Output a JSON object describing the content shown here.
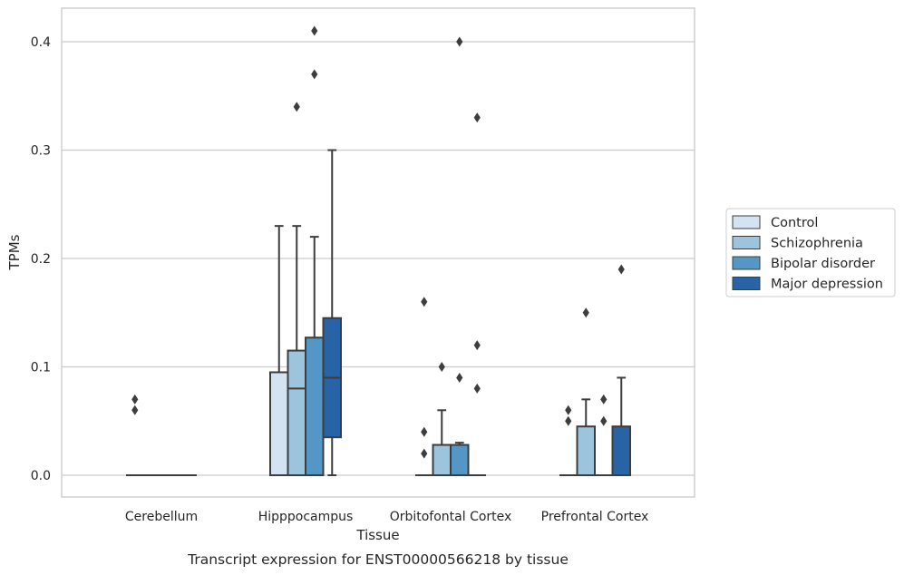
{
  "caption": "Transcript expression for ENST00000566218 by tissue",
  "chart_data": {
    "type": "box",
    "xlabel": "Tissue",
    "ylabel": "TPMs",
    "ylim": [
      -0.02,
      0.43
    ],
    "yticks": [
      0.0,
      0.1,
      0.2,
      0.3,
      0.4
    ],
    "ytick_labels": [
      "0.0",
      "0.1",
      "0.2",
      "0.3",
      "0.4"
    ],
    "grid": "horizontal",
    "legend_position": "right",
    "categories": [
      "Cerebellum",
      "Hipppocampus",
      "Orbitofontal Cortex",
      "Prefrontal Cortex"
    ],
    "series": [
      {
        "name": "Control",
        "color": "#d4e3f1",
        "boxes": [
          {
            "q1": 0,
            "median": 0,
            "q3": 0,
            "whisker_low": 0,
            "whisker_high": 0,
            "outliers": [
              0.06,
              0.07
            ]
          },
          {
            "q1": 0,
            "median": 0,
            "q3": 0.095,
            "whisker_low": 0,
            "whisker_high": 0.23,
            "outliers": []
          },
          {
            "q1": 0,
            "median": 0,
            "q3": 0,
            "whisker_low": 0,
            "whisker_high": 0,
            "outliers": [
              0.02,
              0.04,
              0.16
            ]
          },
          {
            "q1": 0,
            "median": 0,
            "q3": 0,
            "whisker_low": 0,
            "whisker_high": 0,
            "outliers": [
              0.05,
              0.06
            ]
          }
        ]
      },
      {
        "name": "Schizophrenia",
        "color": "#9dc4dd",
        "boxes": [
          {
            "q1": 0,
            "median": 0,
            "q3": 0,
            "whisker_low": 0,
            "whisker_high": 0,
            "outliers": []
          },
          {
            "q1": 0,
            "median": 0.08,
            "q3": 0.115,
            "whisker_low": 0,
            "whisker_high": 0.23,
            "outliers": [
              0.34
            ]
          },
          {
            "q1": 0,
            "median": 0,
            "q3": 0.028,
            "whisker_low": 0,
            "whisker_high": 0.06,
            "outliers": [
              0.1
            ]
          },
          {
            "q1": 0,
            "median": 0,
            "q3": 0.045,
            "whisker_low": 0,
            "whisker_high": 0.07,
            "outliers": [
              0.15
            ]
          }
        ]
      },
      {
        "name": "Bipolar disorder",
        "color": "#5496c4",
        "boxes": [
          {
            "q1": 0,
            "median": 0,
            "q3": 0,
            "whisker_low": 0,
            "whisker_high": 0,
            "outliers": []
          },
          {
            "q1": 0,
            "median": 0,
            "q3": 0.127,
            "whisker_low": 0,
            "whisker_high": 0.22,
            "outliers": [
              0.37,
              0.41
            ]
          },
          {
            "q1": 0,
            "median": 0,
            "q3": 0.028,
            "whisker_low": 0,
            "whisker_high": 0.03,
            "outliers": [
              0.09,
              0.4
            ]
          },
          {
            "q1": 0,
            "median": 0,
            "q3": 0,
            "whisker_low": 0,
            "whisker_high": 0,
            "outliers": [
              0.05,
              0.07
            ]
          }
        ]
      },
      {
        "name": "Major depression",
        "color": "#2763a5",
        "boxes": [
          {
            "q1": 0,
            "median": 0,
            "q3": 0,
            "whisker_low": 0,
            "whisker_high": 0,
            "outliers": []
          },
          {
            "q1": 0.035,
            "median": 0.09,
            "q3": 0.145,
            "whisker_low": 0,
            "whisker_high": 0.3,
            "outliers": []
          },
          {
            "q1": 0,
            "median": 0,
            "q3": 0,
            "whisker_low": 0,
            "whisker_high": 0,
            "outliers": [
              0.08,
              0.12,
              0.33
            ]
          },
          {
            "q1": 0,
            "median": 0,
            "q3": 0.045,
            "whisker_low": 0,
            "whisker_high": 0.09,
            "outliers": [
              0.19
            ]
          }
        ]
      }
    ]
  }
}
